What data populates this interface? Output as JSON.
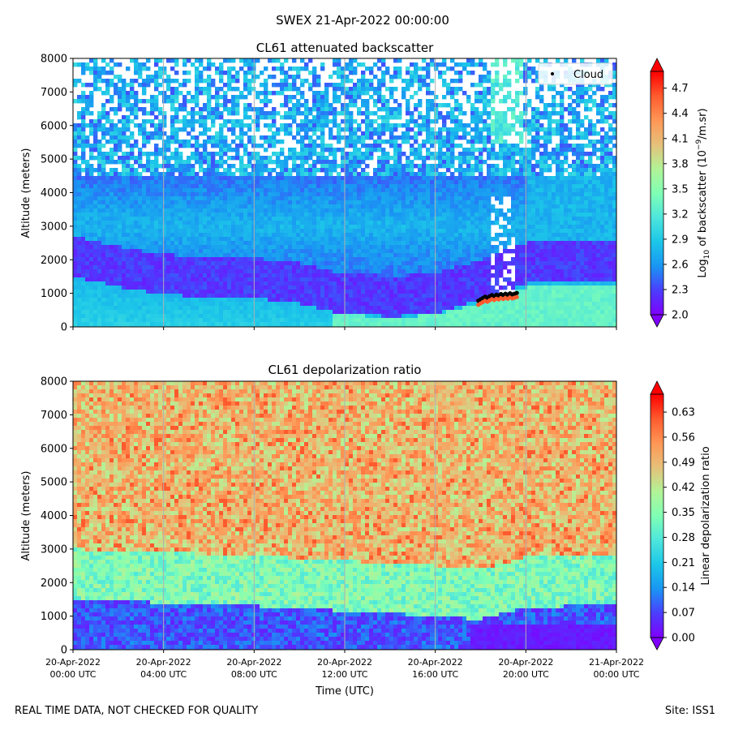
{
  "figure": {
    "suptitle": "SWEX 21-Apr-2022 00:00:00",
    "footer_left": "REAL TIME DATA, NOT CHECKED FOR QUALITY",
    "footer_right": "Site: ISS1",
    "xlabel": "Time (UTC)"
  },
  "colors": {
    "rainbow": [
      "#7f00ff",
      "#4b3efe",
      "#1996f3",
      "#1cc7e8",
      "#4ee6dc",
      "#80ffb4",
      "#b2f396",
      "#e6c07a",
      "#ff9655",
      "#ff5a2e",
      "#ff0000"
    ],
    "grid": "#b0b0b0",
    "cloud_marker": "#000000"
  },
  "chart_data": [
    {
      "type": "heatmap",
      "title": "CL61 attenuated backscatter",
      "ylabel": "Altitude (meters)",
      "colorbar_label": "Log₁₀ of backscatter (10⁻⁹/m.sr)",
      "colorbar_label_parts": [
        "Log",
        "10",
        " of backscatter (10",
        "−9",
        "/m.sr)"
      ],
      "colorbar_range": [
        2.0,
        4.9
      ],
      "colorbar_ticks": [
        "2.0",
        "2.3",
        "2.6",
        "2.9",
        "3.2",
        "3.5",
        "3.8",
        "4.1",
        "4.4",
        "4.7"
      ],
      "colorbar_tick_values": [
        2.0,
        2.3,
        2.6,
        2.9,
        3.2,
        3.5,
        3.8,
        4.1,
        4.4,
        4.7
      ],
      "colorbar_extend": "both",
      "xlim_hours": [
        0,
        24
      ],
      "ylim": [
        0,
        8000
      ],
      "yticks": [
        0,
        1000,
        2000,
        3000,
        4000,
        5000,
        6000,
        7000,
        8000
      ],
      "x_tick_labels_visible": false,
      "grid": "vertical",
      "legend": {
        "label": "Cloud",
        "placement": "top-right"
      },
      "boundary_layer_top": [
        {
          "hour": 0,
          "alt": 1500
        },
        {
          "hour": 2,
          "alt": 1200
        },
        {
          "hour": 4,
          "alt": 950
        },
        {
          "hour": 6,
          "alt": 900
        },
        {
          "hour": 8,
          "alt": 850
        },
        {
          "hour": 10,
          "alt": 700
        },
        {
          "hour": 11.5,
          "alt": 450
        },
        {
          "hour": 14,
          "alt": 300
        },
        {
          "hour": 16,
          "alt": 400
        },
        {
          "hour": 18,
          "alt": 800
        },
        {
          "hour": 20,
          "alt": 1300
        },
        {
          "hour": 24,
          "alt": 1400
        }
      ],
      "cloud_points": [
        {
          "hour": 17.9,
          "alt": 780
        },
        {
          "hour": 18.0,
          "alt": 820
        },
        {
          "hour": 18.1,
          "alt": 860
        },
        {
          "hour": 18.2,
          "alt": 900
        },
        {
          "hour": 18.3,
          "alt": 870
        },
        {
          "hour": 18.4,
          "alt": 910
        },
        {
          "hour": 18.5,
          "alt": 950
        },
        {
          "hour": 18.6,
          "alt": 920
        },
        {
          "hour": 18.7,
          "alt": 960
        },
        {
          "hour": 18.8,
          "alt": 940
        },
        {
          "hour": 18.9,
          "alt": 980
        },
        {
          "hour": 19.0,
          "alt": 950
        },
        {
          "hour": 19.1,
          "alt": 990
        },
        {
          "hour": 19.2,
          "alt": 960
        },
        {
          "hour": 19.3,
          "alt": 1000
        },
        {
          "hour": 19.4,
          "alt": 970
        },
        {
          "hour": 19.5,
          "alt": 990
        },
        {
          "hour": 19.6,
          "alt": 1010
        }
      ]
    },
    {
      "type": "heatmap",
      "title": "CL61 depolarization ratio",
      "ylabel": "Altitude (meters)",
      "xlabel": "Time (UTC)",
      "colorbar_label": "Linear depolarization ratio",
      "colorbar_range": [
        0.0,
        0.68
      ],
      "colorbar_ticks": [
        "0.00",
        "0.07",
        "0.14",
        "0.21",
        "0.28",
        "0.35",
        "0.42",
        "0.49",
        "0.56",
        "0.63"
      ],
      "colorbar_tick_values": [
        0.0,
        0.07,
        0.14,
        0.21,
        0.28,
        0.35,
        0.42,
        0.49,
        0.56,
        0.63
      ],
      "colorbar_extend": "both",
      "xlim_hours": [
        0,
        24
      ],
      "ylim": [
        0,
        8000
      ],
      "yticks": [
        0,
        1000,
        2000,
        3000,
        4000,
        5000,
        6000,
        7000,
        8000
      ],
      "x_ticks_hours": [
        0,
        4,
        8,
        12,
        16,
        20,
        24
      ],
      "x_tick_labels": [
        [
          "20-Apr-2022",
          "00:00 UTC"
        ],
        [
          "20-Apr-2022",
          "04:00 UTC"
        ],
        [
          "20-Apr-2022",
          "08:00 UTC"
        ],
        [
          "20-Apr-2022",
          "12:00 UTC"
        ],
        [
          "20-Apr-2022",
          "16:00 UTC"
        ],
        [
          "20-Apr-2022",
          "20:00 UTC"
        ],
        [
          "21-Apr-2022",
          "00:00 UTC"
        ]
      ],
      "grid": "vertical",
      "low_layer_top": [
        {
          "hour": 0,
          "alt": 1500
        },
        {
          "hour": 4,
          "alt": 1400
        },
        {
          "hour": 8,
          "alt": 1300
        },
        {
          "hour": 12,
          "alt": 1150
        },
        {
          "hour": 16,
          "alt": 1000
        },
        {
          "hour": 18,
          "alt": 900
        },
        {
          "hour": 20,
          "alt": 1250
        },
        {
          "hour": 24,
          "alt": 1350
        }
      ]
    }
  ]
}
